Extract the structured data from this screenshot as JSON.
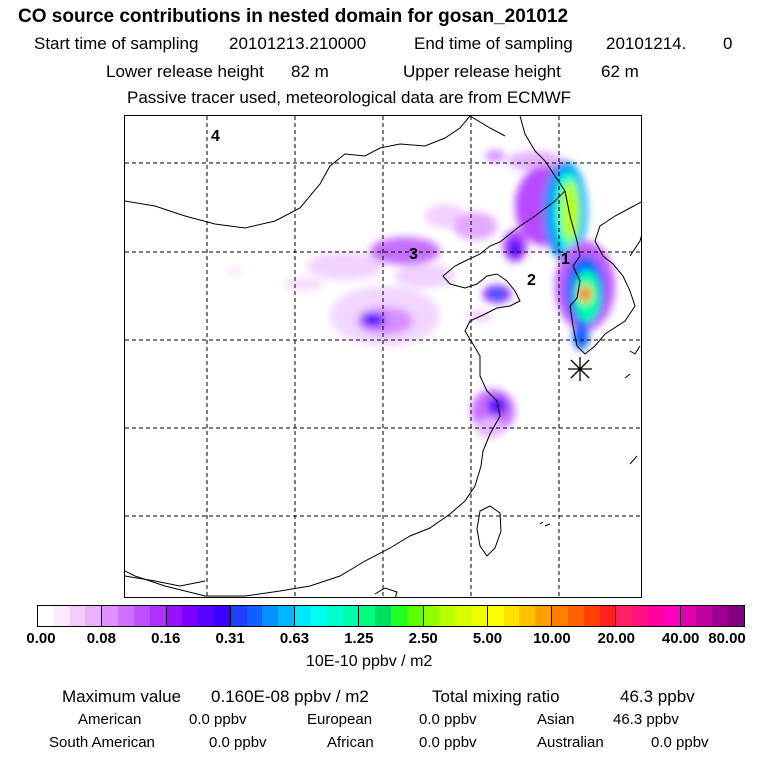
{
  "header": {
    "title": "CO  source contributions in nested domain for gosan_201012",
    "start_label": "Start time of sampling",
    "start_value": "20101213.210000",
    "end_label": "End time of sampling",
    "end_value": "20101214.",
    "end_extra": "0",
    "lower_label": "Lower release height",
    "lower_value": "82 m",
    "upper_label": "Upper release height",
    "upper_value": "62 m",
    "tracer_note": "Passive tracer used, meteorological data are from ECMWF"
  },
  "map": {
    "labels": [
      "4",
      "3",
      "2",
      "1"
    ],
    "receptor_symbol": "✳"
  },
  "colorbar": {
    "tick_labels": [
      "0.00",
      "0.08",
      "0.16",
      "0.31",
      "0.63",
      "1.25",
      "2.50",
      "5.00",
      "10.00",
      "20.00",
      "40.00",
      "80.00"
    ],
    "units": "10E-10 ppbv / m2",
    "segments": [
      [
        "#ffffff",
        "#fbe8ff",
        "#f4ccff",
        "#ebb0ff"
      ],
      [
        "#e090ff",
        "#d070ff",
        "#c050ff",
        "#b030ff"
      ],
      [
        "#9a10ff",
        "#7a00ff",
        "#5a00ff",
        "#3a00ff"
      ],
      [
        "#2040ff",
        "#1060ff",
        "#0090ff",
        "#00b8ff"
      ],
      [
        "#00e8ff",
        "#00ffee",
        "#00ffcc",
        "#00ffaa"
      ],
      [
        "#00ff80",
        "#00e060",
        "#20ff20",
        "#60ff00"
      ],
      [
        "#90ff00",
        "#b8ff00",
        "#d8ff00",
        "#f0ff00"
      ],
      [
        "#ffff00",
        "#ffe000",
        "#ffc000",
        "#ffa000"
      ],
      [
        "#ff8000",
        "#ff6000",
        "#ff4000",
        "#ff2020"
      ],
      [
        "#ff2060",
        "#ff1080",
        "#ff00a0",
        "#ff00c0"
      ],
      [
        "#e000b0",
        "#c000a0",
        "#a00090",
        "#800080"
      ]
    ]
  },
  "summary": {
    "max_label": "Maximum value",
    "max_value": "0.160E-08 ppbv / m2",
    "total_label": "Total mixing ratio",
    "total_value": "46.3 ppbv",
    "regions": [
      {
        "name": "American",
        "value": "0.0 ppbv"
      },
      {
        "name": "European",
        "value": "0.0 ppbv"
      },
      {
        "name": "Asian",
        "value": "46.3 ppbv"
      },
      {
        "name": "South American",
        "value": "0.0 ppbv"
      },
      {
        "name": "African",
        "value": "0.0 ppbv"
      },
      {
        "name": "Australian",
        "value": "0.0 ppbv"
      }
    ]
  }
}
